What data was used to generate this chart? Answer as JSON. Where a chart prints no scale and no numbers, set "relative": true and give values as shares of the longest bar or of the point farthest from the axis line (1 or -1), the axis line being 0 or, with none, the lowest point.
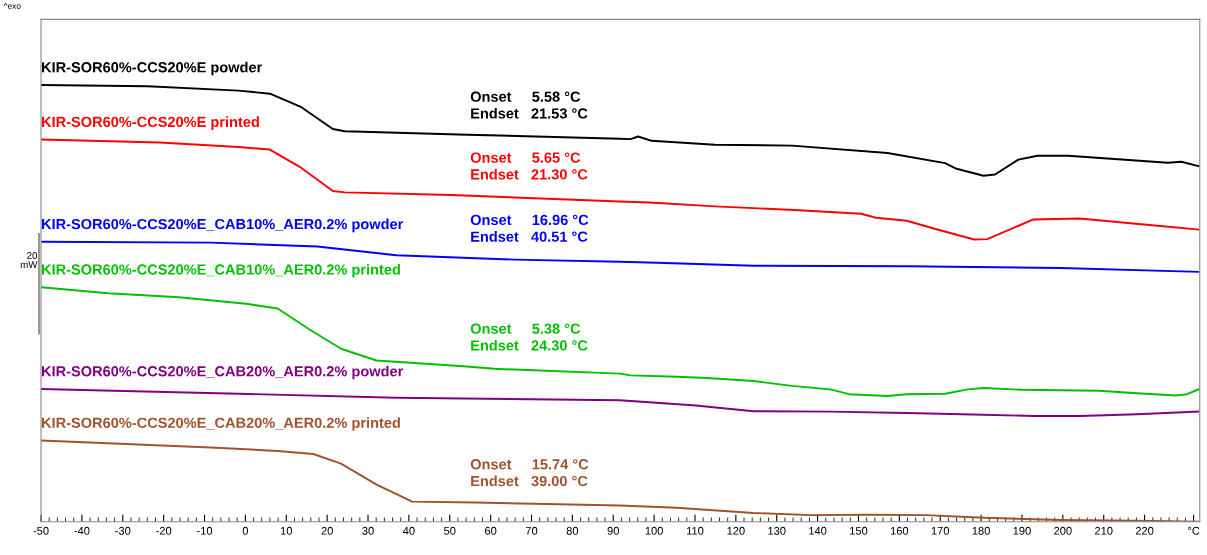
{
  "chart_data": {
    "type": "line",
    "relative": true,
    "xlim": [
      -50,
      233.5
    ],
    "xticks": [
      -50,
      -40,
      -30,
      -20,
      -10,
      0,
      10,
      20,
      30,
      40,
      50,
      60,
      70,
      80,
      90,
      100,
      110,
      120,
      130,
      140,
      150,
      160,
      170,
      180,
      190,
      200,
      210,
      220,
      {
        "value": 232,
        "label": "°C"
      }
    ],
    "grid": false,
    "legend": false,
    "marker": "none",
    "line_style": "solid",
    "series": [
      {
        "name": "KIR-SOR60%-CCS20%E powder",
        "color": "#000000",
        "x": [
          -50,
          -23.9,
          -1.7,
          6.0,
          13.7,
          21.4,
          24.3,
          54.3,
          91.6,
          94.2,
          96.1,
          99.4,
          114.9,
          133.7,
          157.1,
          171.2,
          174.0,
          180.6,
          183.4,
          189.1,
          193.8,
          201.3,
          225.7,
          229.0,
          233.2
        ],
        "values": [
          1.0,
          0.997,
          0.987,
          0.98,
          0.949,
          0.899,
          0.894,
          0.886,
          0.877,
          0.876,
          0.882,
          0.872,
          0.863,
          0.861,
          0.844,
          0.821,
          0.808,
          0.792,
          0.795,
          0.829,
          0.838,
          0.838,
          0.822,
          0.824,
          0.814
        ]
      },
      {
        "name": "KIR-SOR60%-CCS20%E printed",
        "color": "#ff0000",
        "x": [
          -50,
          -21.0,
          -1.7,
          6.0,
          13.7,
          21.4,
          24.3,
          50.4,
          91.6,
          98.9,
          114.9,
          135.5,
          150.6,
          154.3,
          161.8,
          169.3,
          178.3,
          181.5,
          192.8,
          204.1,
          223.8,
          233.2
        ],
        "values": [
          0.875,
          0.868,
          0.858,
          0.852,
          0.81,
          0.757,
          0.754,
          0.748,
          0.733,
          0.731,
          0.722,
          0.713,
          0.705,
          0.696,
          0.689,
          0.669,
          0.646,
          0.647,
          0.692,
          0.694,
          0.677,
          0.669
        ]
      },
      {
        "name": "KIR-SOR60%-CCS20%E_CAB10%_AER0.2% powder",
        "color": "#0000ff",
        "x": [
          -50,
          -8.5,
          17.6,
          36.9,
          65.9,
          91.6,
          100.8,
          124.3,
          161.8,
          199.4,
          233.2
        ],
        "values": [
          0.641,
          0.639,
          0.63,
          0.61,
          0.6,
          0.595,
          0.593,
          0.586,
          0.585,
          0.581,
          0.572
        ]
      },
      {
        "name": "KIR-SOR60%-CCS20%E_CAB10%_AER0.2% printed",
        "color": "#00c000",
        "x": [
          -50,
          -33.6,
          -16.2,
          0.2,
          7.9,
          15.7,
          23.4,
          32.1,
          53.3,
          61.0,
          91.6,
          94.2,
          105.5,
          113.0,
          124.3,
          133.7,
          143.1,
          147.7,
          157.1,
          161.8,
          171.2,
          176.8,
          180.6,
          190.0,
          208.8,
          218.2,
          227.6,
          230.4,
          233.2
        ],
        "values": [
          0.537,
          0.523,
          0.514,
          0.499,
          0.488,
          0.44,
          0.396,
          0.369,
          0.356,
          0.35,
          0.339,
          0.335,
          0.332,
          0.329,
          0.322,
          0.311,
          0.303,
          0.292,
          0.288,
          0.292,
          0.293,
          0.303,
          0.306,
          0.302,
          0.3,
          0.294,
          0.289,
          0.292,
          0.303
        ]
      },
      {
        "name": "KIR-SOR60%-CCS20%E_CAB20%_AER0.2% powder",
        "color": "#800080",
        "x": [
          -50,
          -1.7,
          36.9,
          91.6,
          96.1,
          110.2,
          124.3,
          143.1,
          161.8,
          180.6,
          192.8,
          204.1,
          218.2,
          233.2
        ],
        "values": [
          0.304,
          0.293,
          0.284,
          0.278,
          0.275,
          0.266,
          0.253,
          0.252,
          0.249,
          0.245,
          0.242,
          0.242,
          0.246,
          0.252
        ]
      },
      {
        "name": "KIR-SOR60%-CCS20%E_CAB20%_AER0.2% printed",
        "color": "#a0522d",
        "x": [
          -50,
          -8.5,
          7.9,
          16.6,
          23.4,
          32.1,
          40.8,
          56.2,
          91.6,
          105.5,
          124.3,
          138.4,
          152.5,
          166.5,
          180.6,
          199.4,
          218.2,
          233.2
        ],
        "values": [
          0.186,
          0.17,
          0.162,
          0.155,
          0.133,
          0.085,
          0.046,
          0.044,
          0.037,
          0.032,
          0.02,
          0.015,
          0.016,
          0.015,
          0.009,
          0.004,
          0.002,
          0.0
        ]
      }
    ],
    "annotations": [
      "^exo",
      "20\nmW",
      "Onset     5.58 °C\nEndset   21.53 °C",
      "Onset     5.65 °C\nEndset   21.30 °C",
      "Onset     16.96 °C\nEndset   40.51 °C",
      "Onset     5.38 °C\nEndset   24.30 °C",
      "Onset     15.74 °C\nEndset   39.00 °C"
    ]
  }
}
